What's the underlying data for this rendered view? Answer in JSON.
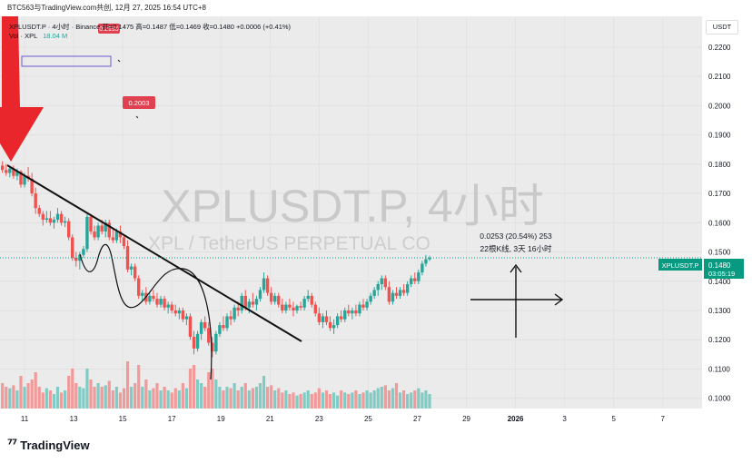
{
  "header": {
    "share_line": "BTC563与TradingView.com共创, 12月 27, 2025 16:54 UTC+8"
  },
  "legend": {
    "symbol_line": "XPLUSDT.P · 4小时 · Binance  开=0.1475  高=0.1487  低=0.1469  收=0.1480  +0.0006 (+0.41%)",
    "vol_label": "Vol · XPL",
    "vol_value": "18.04 M"
  },
  "currency_button": "USDT",
  "watermark": {
    "main": "XPLUSDT.P, 4小时",
    "sub": "XPL / TetherUS PERPETUAL CO"
  },
  "measure": {
    "line1": "0.0253 (20.54%) 253",
    "line2": "22根K线, 3天 16小时"
  },
  "price_badge": {
    "symbol": "XPLUSDT.P",
    "price": "0.1480",
    "countdown": "03:05:19"
  },
  "alert_labels": [
    "0.2195",
    "0.2003"
  ],
  "colors": {
    "up": "#26a69a",
    "down": "#ef5350",
    "vol_up": "#80cbc4",
    "vol_down": "#f19a9a",
    "badge": "#089981",
    "arrow": "#e8262b"
  },
  "footer": {
    "brand": "TradingView"
  },
  "chart_data": {
    "type": "candlestick",
    "y_ticks": [
      "0.1000",
      "0.1100",
      "0.1200",
      "0.1300",
      "0.1400",
      "0.1500",
      "0.1600",
      "0.1700",
      "0.1800",
      "0.1900",
      "0.2000",
      "0.2100",
      "0.2200"
    ],
    "x_ticks": [
      "11",
      "13",
      "15",
      "17",
      "19",
      "21",
      "23",
      "25",
      "27",
      "29",
      "2026",
      "3",
      "5",
      "7"
    ],
    "ylim": [
      0.0965,
      0.2305
    ],
    "xlim": [
      10.0,
      38.6
    ],
    "candles": [
      [
        10.1,
        0.1795,
        0.181,
        0.177,
        0.178
      ],
      [
        10.25,
        0.178,
        0.18,
        0.176,
        0.177
      ],
      [
        10.4,
        0.177,
        0.179,
        0.1755,
        0.1785
      ],
      [
        10.55,
        0.1785,
        0.1795,
        0.175,
        0.176
      ],
      [
        10.7,
        0.176,
        0.1785,
        0.1745,
        0.1775
      ],
      [
        10.85,
        0.1775,
        0.178,
        0.172,
        0.173
      ],
      [
        11.0,
        0.173,
        0.177,
        0.172,
        0.176
      ],
      [
        11.15,
        0.176,
        0.179,
        0.174,
        0.175
      ],
      [
        11.3,
        0.175,
        0.177,
        0.169,
        0.17
      ],
      [
        11.45,
        0.17,
        0.172,
        0.163,
        0.165
      ],
      [
        11.6,
        0.165,
        0.166,
        0.162,
        0.163
      ],
      [
        11.75,
        0.163,
        0.164,
        0.159,
        0.161
      ],
      [
        11.9,
        0.161,
        0.164,
        0.16,
        0.1615
      ],
      [
        12.05,
        0.1615,
        0.164,
        0.159,
        0.16
      ],
      [
        12.2,
        0.16,
        0.162,
        0.158,
        0.161
      ],
      [
        12.35,
        0.161,
        0.165,
        0.16,
        0.163
      ],
      [
        12.5,
        0.163,
        0.164,
        0.159,
        0.16
      ],
      [
        12.65,
        0.16,
        0.162,
        0.1585,
        0.1605
      ],
      [
        12.8,
        0.1605,
        0.1615,
        0.154,
        0.155
      ],
      [
        12.95,
        0.155,
        0.156,
        0.147,
        0.148
      ],
      [
        13.1,
        0.148,
        0.15,
        0.145,
        0.147
      ],
      [
        13.25,
        0.147,
        0.15,
        0.144,
        0.149
      ],
      [
        13.4,
        0.149,
        0.152,
        0.148,
        0.151
      ],
      [
        13.55,
        0.151,
        0.163,
        0.15,
        0.162
      ],
      [
        13.7,
        0.162,
        0.163,
        0.156,
        0.157
      ],
      [
        13.85,
        0.157,
        0.159,
        0.154,
        0.155
      ],
      [
        14.0,
        0.155,
        0.16,
        0.154,
        0.159
      ],
      [
        14.15,
        0.159,
        0.161,
        0.156,
        0.157
      ],
      [
        14.3,
        0.157,
        0.161,
        0.155,
        0.16
      ],
      [
        14.45,
        0.16,
        0.161,
        0.154,
        0.155
      ],
      [
        14.6,
        0.155,
        0.158,
        0.153,
        0.154
      ],
      [
        14.75,
        0.154,
        0.158,
        0.153,
        0.157
      ],
      [
        14.9,
        0.157,
        0.159,
        0.153,
        0.155
      ],
      [
        15.05,
        0.155,
        0.156,
        0.151,
        0.152
      ],
      [
        15.2,
        0.152,
        0.154,
        0.143,
        0.144
      ],
      [
        15.35,
        0.144,
        0.146,
        0.142,
        0.145
      ],
      [
        15.5,
        0.145,
        0.146,
        0.14,
        0.141
      ],
      [
        15.65,
        0.141,
        0.142,
        0.134,
        0.135
      ],
      [
        15.8,
        0.135,
        0.137,
        0.133,
        0.136
      ],
      [
        15.95,
        0.136,
        0.138,
        0.132,
        0.133
      ],
      [
        16.1,
        0.133,
        0.136,
        0.132,
        0.135
      ],
      [
        16.25,
        0.135,
        0.137,
        0.133,
        0.134
      ],
      [
        16.4,
        0.134,
        0.136,
        0.131,
        0.132
      ],
      [
        16.55,
        0.132,
        0.135,
        0.131,
        0.134
      ],
      [
        16.7,
        0.134,
        0.135,
        0.13,
        0.131
      ],
      [
        16.85,
        0.131,
        0.133,
        0.129,
        0.132
      ],
      [
        17.0,
        0.132,
        0.133,
        0.129,
        0.13
      ],
      [
        17.15,
        0.13,
        0.132,
        0.128,
        0.129
      ],
      [
        17.3,
        0.129,
        0.131,
        0.127,
        0.13
      ],
      [
        17.45,
        0.13,
        0.131,
        0.126,
        0.127
      ],
      [
        17.6,
        0.127,
        0.129,
        0.125,
        0.128
      ],
      [
        17.75,
        0.128,
        0.129,
        0.12,
        0.121
      ],
      [
        17.9,
        0.121,
        0.123,
        0.115,
        0.117
      ],
      [
        18.05,
        0.117,
        0.123,
        0.116,
        0.122
      ],
      [
        18.2,
        0.122,
        0.127,
        0.12,
        0.126
      ],
      [
        18.35,
        0.126,
        0.128,
        0.123,
        0.124
      ],
      [
        18.5,
        0.124,
        0.126,
        0.118,
        0.119
      ],
      [
        18.65,
        0.119,
        0.121,
        0.114,
        0.116
      ],
      [
        18.8,
        0.116,
        0.123,
        0.115,
        0.122
      ],
      [
        18.95,
        0.122,
        0.126,
        0.121,
        0.125
      ],
      [
        19.1,
        0.125,
        0.128,
        0.123,
        0.124
      ],
      [
        19.25,
        0.124,
        0.129,
        0.123,
        0.128
      ],
      [
        19.4,
        0.128,
        0.13,
        0.125,
        0.127
      ],
      [
        19.55,
        0.127,
        0.132,
        0.126,
        0.131
      ],
      [
        19.7,
        0.131,
        0.133,
        0.128,
        0.13
      ],
      [
        19.85,
        0.13,
        0.136,
        0.129,
        0.135
      ],
      [
        20.0,
        0.135,
        0.137,
        0.13,
        0.131
      ],
      [
        20.15,
        0.131,
        0.134,
        0.129,
        0.133
      ],
      [
        20.3,
        0.133,
        0.136,
        0.131,
        0.132
      ],
      [
        20.45,
        0.132,
        0.135,
        0.13,
        0.134
      ],
      [
        20.6,
        0.134,
        0.138,
        0.133,
        0.137
      ],
      [
        20.75,
        0.137,
        0.143,
        0.136,
        0.141
      ],
      [
        20.9,
        0.141,
        0.142,
        0.135,
        0.136
      ],
      [
        21.05,
        0.136,
        0.138,
        0.132,
        0.133
      ],
      [
        21.2,
        0.133,
        0.136,
        0.132,
        0.135
      ],
      [
        21.35,
        0.135,
        0.136,
        0.131,
        0.132
      ],
      [
        21.5,
        0.132,
        0.134,
        0.129,
        0.13
      ],
      [
        21.65,
        0.13,
        0.133,
        0.129,
        0.132
      ],
      [
        21.8,
        0.132,
        0.134,
        0.13,
        0.131
      ],
      [
        21.95,
        0.131,
        0.133,
        0.128,
        0.13
      ],
      [
        22.1,
        0.13,
        0.132,
        0.129,
        0.1315
      ],
      [
        22.25,
        0.1315,
        0.133,
        0.13,
        0.131
      ],
      [
        22.4,
        0.131,
        0.135,
        0.13,
        0.134
      ],
      [
        22.55,
        0.134,
        0.137,
        0.133,
        0.135
      ],
      [
        22.7,
        0.135,
        0.136,
        0.131,
        0.132
      ],
      [
        22.85,
        0.132,
        0.133,
        0.128,
        0.129
      ],
      [
        23.0,
        0.129,
        0.131,
        0.125,
        0.126
      ],
      [
        23.15,
        0.126,
        0.129,
        0.124,
        0.128
      ],
      [
        23.3,
        0.128,
        0.13,
        0.125,
        0.126
      ],
      [
        23.45,
        0.126,
        0.128,
        0.123,
        0.124
      ],
      [
        23.6,
        0.124,
        0.127,
        0.122,
        0.125
      ],
      [
        23.75,
        0.125,
        0.129,
        0.124,
        0.128
      ],
      [
        23.9,
        0.128,
        0.13,
        0.126,
        0.127
      ],
      [
        24.05,
        0.127,
        0.131,
        0.126,
        0.13
      ],
      [
        24.2,
        0.13,
        0.132,
        0.128,
        0.129
      ],
      [
        24.35,
        0.129,
        0.131,
        0.127,
        0.13
      ],
      [
        24.5,
        0.13,
        0.132,
        0.128,
        0.129
      ],
      [
        24.65,
        0.129,
        0.133,
        0.128,
        0.132
      ],
      [
        24.8,
        0.132,
        0.134,
        0.13,
        0.131
      ],
      [
        24.95,
        0.131,
        0.134,
        0.13,
        0.133
      ],
      [
        25.1,
        0.133,
        0.136,
        0.132,
        0.135
      ],
      [
        25.25,
        0.135,
        0.138,
        0.134,
        0.137
      ],
      [
        25.4,
        0.137,
        0.14,
        0.135,
        0.139
      ],
      [
        25.55,
        0.139,
        0.142,
        0.137,
        0.141
      ],
      [
        25.7,
        0.141,
        0.142,
        0.137,
        0.138
      ],
      [
        25.85,
        0.138,
        0.14,
        0.132,
        0.133
      ],
      [
        26.0,
        0.133,
        0.137,
        0.132,
        0.136
      ],
      [
        26.15,
        0.136,
        0.138,
        0.134,
        0.135
      ],
      [
        26.3,
        0.135,
        0.138,
        0.134,
        0.137
      ],
      [
        26.45,
        0.137,
        0.139,
        0.135,
        0.136
      ],
      [
        26.6,
        0.136,
        0.14,
        0.135,
        0.139
      ],
      [
        26.75,
        0.139,
        0.142,
        0.138,
        0.141
      ],
      [
        26.9,
        0.141,
        0.143,
        0.139,
        0.14
      ],
      [
        27.05,
        0.14,
        0.144,
        0.139,
        0.143
      ],
      [
        27.2,
        0.143,
        0.147,
        0.142,
        0.146
      ],
      [
        27.35,
        0.146,
        0.149,
        0.145,
        0.1475
      ],
      [
        27.5,
        0.1475,
        0.1487,
        0.1469,
        0.148
      ]
    ],
    "volume_max": 1.0,
    "volume": [
      0.35,
      0.3,
      0.28,
      0.32,
      0.25,
      0.45,
      0.3,
      0.35,
      0.4,
      0.5,
      0.3,
      0.22,
      0.28,
      0.25,
      0.2,
      0.3,
      0.22,
      0.25,
      0.45,
      0.55,
      0.35,
      0.3,
      0.28,
      0.55,
      0.4,
      0.3,
      0.35,
      0.3,
      0.32,
      0.38,
      0.25,
      0.3,
      0.22,
      0.28,
      0.65,
      0.3,
      0.35,
      0.6,
      0.3,
      0.4,
      0.25,
      0.28,
      0.35,
      0.25,
      0.3,
      0.25,
      0.22,
      0.28,
      0.25,
      0.35,
      0.28,
      0.55,
      0.6,
      0.4,
      0.35,
      0.3,
      0.5,
      0.55,
      0.4,
      0.3,
      0.25,
      0.3,
      0.28,
      0.35,
      0.25,
      0.3,
      0.35,
      0.25,
      0.28,
      0.3,
      0.35,
      0.45,
      0.3,
      0.32,
      0.25,
      0.28,
      0.22,
      0.25,
      0.2,
      0.22,
      0.18,
      0.2,
      0.22,
      0.25,
      0.2,
      0.22,
      0.28,
      0.22,
      0.25,
      0.2,
      0.22,
      0.18,
      0.25,
      0.22,
      0.2,
      0.22,
      0.25,
      0.2,
      0.22,
      0.25,
      0.22,
      0.25,
      0.28,
      0.3,
      0.32,
      0.25,
      0.28,
      0.35,
      0.22,
      0.25,
      0.2,
      0.22,
      0.25,
      0.28,
      0.22,
      0.25,
      0.2,
      0.22,
      0.12
    ]
  }
}
